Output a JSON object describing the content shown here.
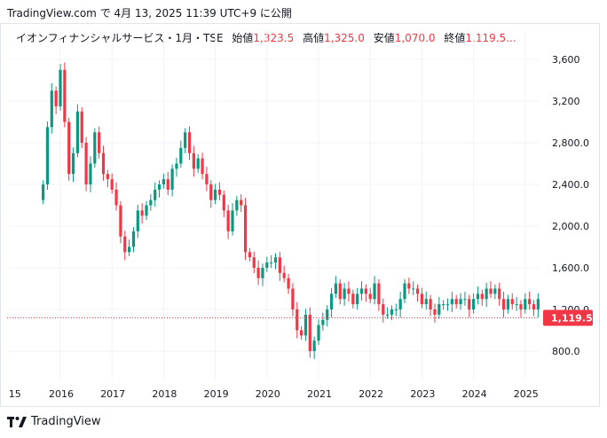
{
  "header": {
    "source": "TradingView.com",
    "text": "で 4月 13, 2025 11:39 UTC+9 に公開"
  },
  "legend": {
    "symbol": "イオンフィナンシャルサービス・1月・TSE",
    "open_label": "始値",
    "open_value": "1,323.5",
    "high_label": "高値",
    "high_value": "1,325.0",
    "low_label": "安値",
    "low_value": "1,070.0",
    "close_label": "終値",
    "close_value": "1,119.5..."
  },
  "price_tag": "1,119.5",
  "footer": {
    "brand": "TradingView"
  },
  "colors": {
    "up": "#089981",
    "down": "#f23645",
    "grid": "#f0f3fa",
    "text": "#131722"
  },
  "chart_data": {
    "type": "candlestick",
    "y_ticks": [
      800,
      1200,
      1600,
      2000,
      2400,
      2800,
      3200,
      3600
    ],
    "y_tick_labels": [
      "800.0",
      "1,200.0",
      "1,600.0",
      "2,000.0",
      "2,400.0",
      "2,800.0",
      "3,200",
      "3,600"
    ],
    "x_tick_labels": [
      "15",
      "2016",
      "2017",
      "2018",
      "2019",
      "2020",
      "2021",
      "2022",
      "2023",
      "2024",
      "2025"
    ],
    "x_tick_years": [
      2015.0,
      2016.0,
      2017.0,
      2018.0,
      2019.0,
      2020.0,
      2021.0,
      2022.0,
      2023.0,
      2024.0,
      2025.0
    ],
    "last_price": 1119.5,
    "closes": [
      2400,
      2950,
      3300,
      3150,
      3500,
      3000,
      2500,
      2700,
      3100,
      2800,
      2400,
      2600,
      2900,
      2700,
      2500,
      2450,
      2350,
      2200,
      1900,
      1750,
      1800,
      1950,
      2150,
      2100,
      2200,
      2250,
      2350,
      2400,
      2450,
      2350,
      2550,
      2600,
      2750,
      2900,
      2700,
      2550,
      2650,
      2500,
      2400,
      2250,
      2350,
      2300,
      2150,
      1950,
      2150,
      2250,
      2200,
      1750,
      1700,
      1600,
      1500,
      1600,
      1650,
      1650,
      1700,
      1550,
      1500,
      1400,
      1200,
      1000,
      950,
      1150,
      800,
      900,
      1050,
      1100,
      1200,
      1350,
      1450,
      1300,
      1400,
      1350,
      1250,
      1350,
      1400,
      1350,
      1300,
      1450,
      1250,
      1150,
      1150,
      1200,
      1200,
      1300,
      1450,
      1400,
      1400,
      1350,
      1250,
      1300,
      1200,
      1150,
      1250,
      1250,
      1250,
      1300,
      1250,
      1300,
      1300,
      1200,
      1300,
      1350,
      1300,
      1400,
      1350,
      1400,
      1300,
      1200,
      1300,
      1250,
      1250,
      1200,
      1300,
      1250,
      1200,
      1300,
      1119.5
    ]
  }
}
